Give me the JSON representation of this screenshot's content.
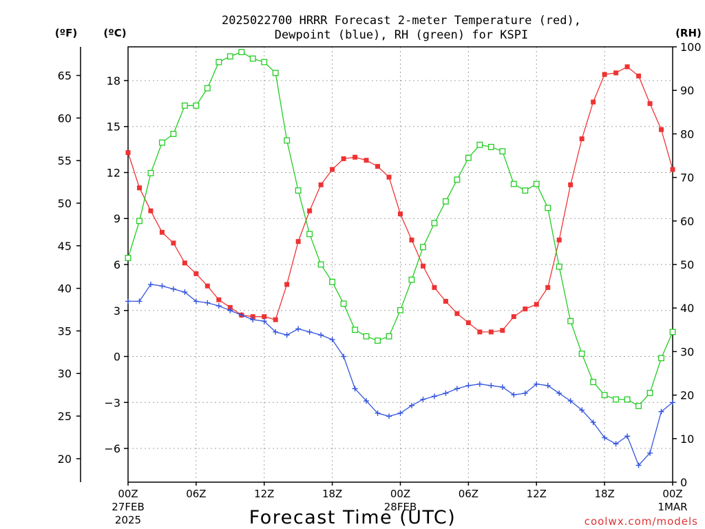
{
  "chart_data": {
    "type": "line",
    "title_line1": "2025022700 HRRR Forecast 2-meter Temperature (red),",
    "title_line2": "Dewpoint (blue), RH (green) for KSPI",
    "left_unit_f": "(ºF)",
    "left_unit_c": "(ºC)",
    "right_unit": "(RH)",
    "xlabel": "Forecast Time (UTC)",
    "watermark": "coolwx.com/models",
    "hours": [
      0,
      1,
      2,
      3,
      4,
      5,
      6,
      7,
      8,
      9,
      10,
      11,
      12,
      13,
      14,
      15,
      16,
      17,
      18,
      19,
      20,
      21,
      22,
      23,
      24,
      25,
      26,
      27,
      28,
      29,
      30,
      31,
      32,
      33,
      34,
      35,
      36,
      37,
      38,
      39,
      40,
      41,
      42,
      43,
      44,
      45,
      46,
      47,
      48
    ],
    "x_ticks": [
      {
        "hour": 0,
        "label": "00Z",
        "sub1": "27FEB",
        "sub2": "2025"
      },
      {
        "hour": 6,
        "label": "06Z",
        "sub1": "",
        "sub2": ""
      },
      {
        "hour": 12,
        "label": "12Z",
        "sub1": "",
        "sub2": ""
      },
      {
        "hour": 18,
        "label": "18Z",
        "sub1": "",
        "sub2": ""
      },
      {
        "hour": 24,
        "label": "00Z",
        "sub1": "28FEB",
        "sub2": ""
      },
      {
        "hour": 30,
        "label": "06Z",
        "sub1": "",
        "sub2": ""
      },
      {
        "hour": 36,
        "label": "12Z",
        "sub1": "",
        "sub2": ""
      },
      {
        "hour": 42,
        "label": "18Z",
        "sub1": "",
        "sub2": ""
      },
      {
        "hour": 48,
        "label": "00Z",
        "sub1": "1MAR",
        "sub2": ""
      }
    ],
    "xlim": [
      0,
      48
    ],
    "celsius_lim": [
      -8.2,
      20.2
    ],
    "celsius_ticks": [
      18,
      15,
      12,
      9,
      6,
      3,
      0,
      -3,
      -6
    ],
    "celsius_tick_labels": [
      "18",
      "15",
      "12",
      "9",
      "6",
      "3",
      "0",
      "−3",
      "−6"
    ],
    "fahrenheit_ticks": [
      65,
      60,
      55,
      50,
      45,
      40,
      35,
      30,
      25,
      20
    ],
    "rh_lim": [
      0,
      100
    ],
    "rh_ticks": [
      100,
      90,
      80,
      70,
      60,
      50,
      40,
      30,
      20,
      10,
      0
    ],
    "grid": true,
    "series": [
      {
        "name": "Temperature",
        "color": "#ee3333",
        "marker": "filled-square",
        "axis": "celsius",
        "values": [
          13.3,
          11.0,
          9.5,
          8.1,
          7.4,
          6.1,
          5.4,
          4.6,
          3.7,
          3.2,
          2.7,
          2.6,
          2.6,
          2.4,
          4.7,
          7.5,
          9.5,
          11.2,
          12.2,
          12.9,
          13.0,
          12.8,
          12.4,
          11.7,
          9.3,
          7.6,
          5.9,
          4.5,
          3.6,
          2.8,
          2.2,
          1.6,
          1.6,
          1.7,
          2.6,
          3.1,
          3.4,
          4.5,
          7.6,
          11.2,
          14.2,
          16.6,
          18.4,
          18.5,
          18.9,
          18.3,
          16.5,
          14.8,
          12.2
        ]
      },
      {
        "name": "Dewpoint",
        "color": "#3355dd",
        "marker": "plus",
        "axis": "celsius",
        "values": [
          3.6,
          3.6,
          4.7,
          4.6,
          4.4,
          4.2,
          3.6,
          3.5,
          3.3,
          3.0,
          2.7,
          2.4,
          2.3,
          1.6,
          1.4,
          1.8,
          1.6,
          1.4,
          1.1,
          0.0,
          -2.1,
          -2.9,
          -3.7,
          -3.9,
          -3.7,
          -3.2,
          -2.8,
          -2.6,
          -2.4,
          -2.1,
          -1.9,
          -1.8,
          -1.9,
          -2.0,
          -2.5,
          -2.4,
          -1.8,
          -1.9,
          -2.4,
          -2.9,
          -3.5,
          -4.3,
          -5.3,
          -5.7,
          -5.2,
          -7.1,
          -6.3,
          -3.6,
          -3.0
        ]
      },
      {
        "name": "RH",
        "color": "#22cc22",
        "marker": "open-square",
        "axis": "rh",
        "values": [
          51.5,
          60,
          71,
          78,
          80,
          86.5,
          86.5,
          90.5,
          96.5,
          97.8,
          98.8,
          97.3,
          96.5,
          94,
          78.5,
          67,
          57,
          50,
          46,
          41,
          35,
          33.5,
          32.5,
          33.5,
          39.5,
          46.5,
          54,
          59.5,
          64.5,
          69.5,
          74.5,
          77.5,
          77,
          76,
          68.5,
          67,
          68.5,
          63,
          49.5,
          37,
          29.5,
          23,
          20,
          19,
          19,
          17.5,
          20.5,
          28.5,
          34.5
        ]
      }
    ]
  }
}
